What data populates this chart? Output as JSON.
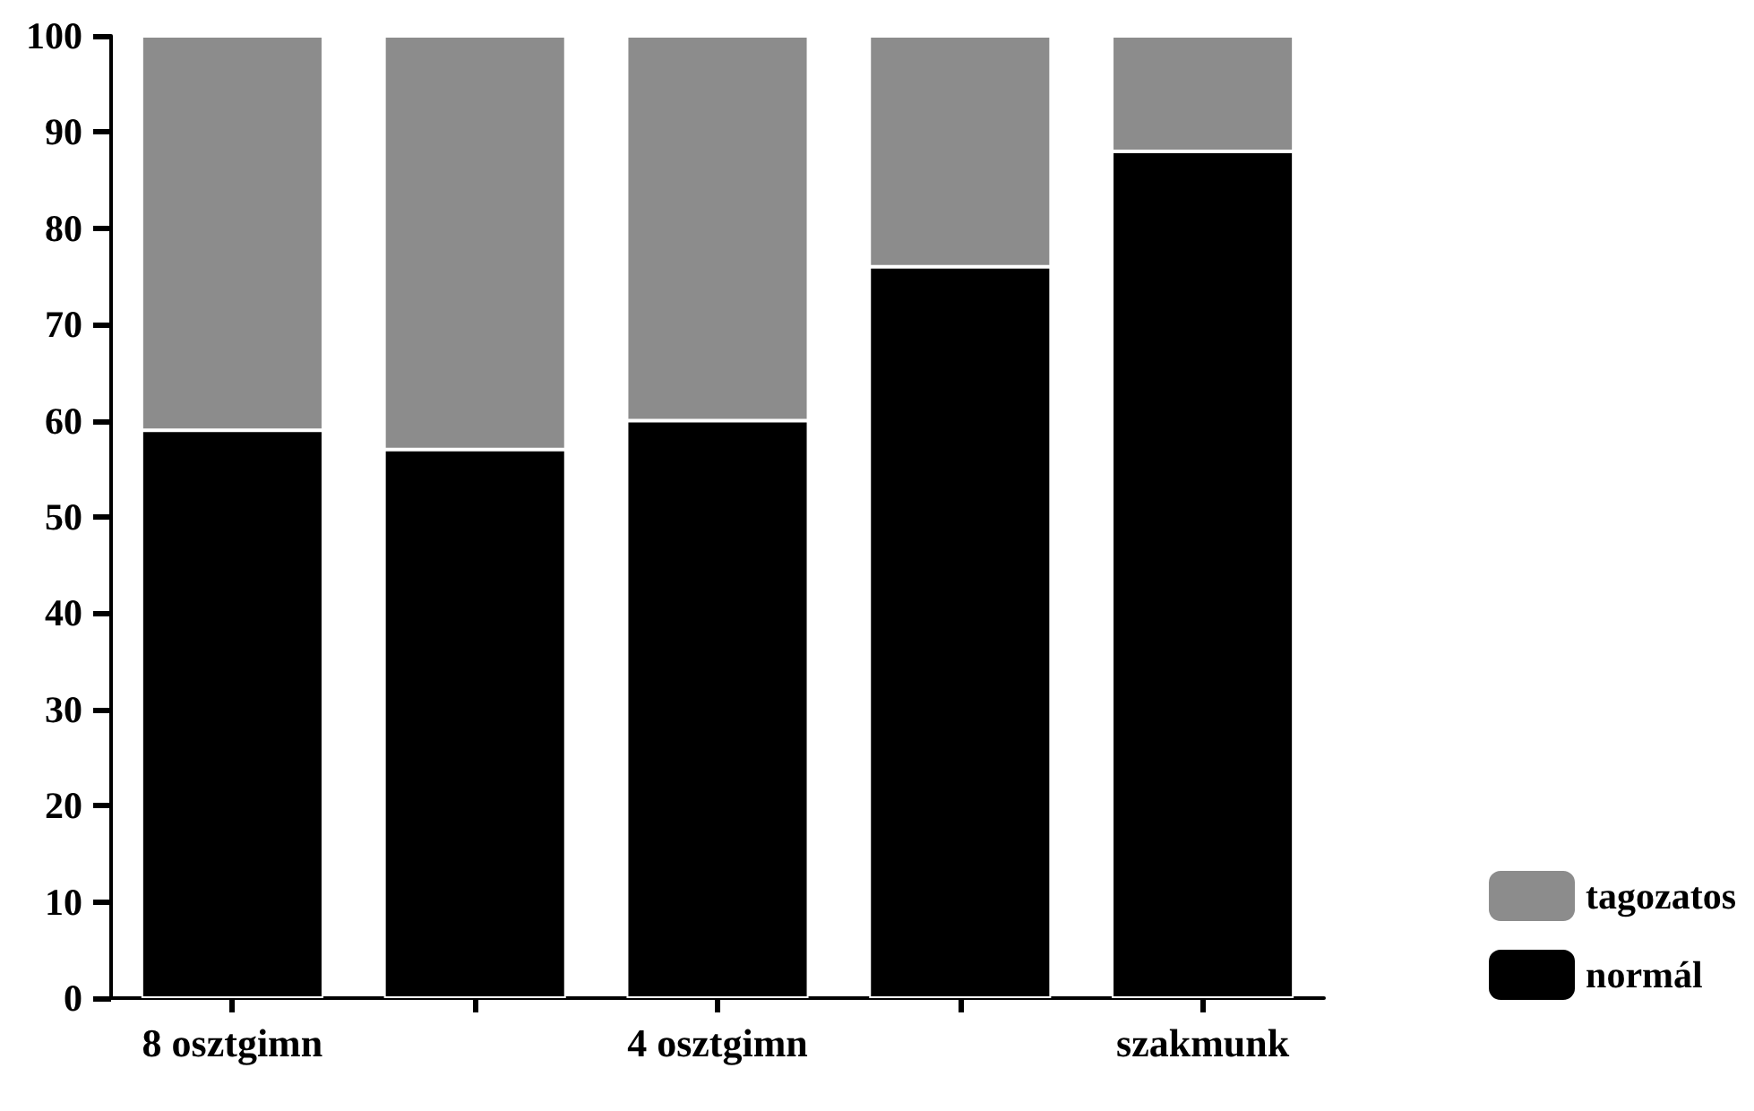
{
  "chart_data": {
    "type": "bar",
    "stacked": true,
    "categories": [
      "8 osztgimn",
      null,
      "4 osztgimn",
      null,
      "szakmunk"
    ],
    "series": [
      {
        "name": "normál",
        "color": "#000000",
        "values": [
          59,
          57,
          60,
          76,
          88
        ]
      },
      {
        "name": "tagozatos",
        "color": "#8c8c8c",
        "values": [
          41,
          43,
          40,
          24,
          12
        ]
      }
    ],
    "ylim": [
      0,
      100
    ],
    "yticks": [
      0,
      10,
      20,
      30,
      40,
      50,
      60,
      70,
      80,
      90,
      100
    ],
    "grid": false,
    "legend": "bottom right"
  }
}
